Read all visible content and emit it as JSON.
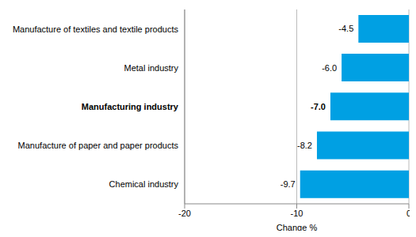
{
  "chart_data": {
    "type": "bar",
    "orientation": "horizontal",
    "categories": [
      "Manufacture of textiles and textile products",
      "Metal industry",
      "Manufacturing industry",
      "Manufacture of paper and paper products",
      "Chemical industry"
    ],
    "values": [
      -4.5,
      -6.0,
      -7.0,
      -8.2,
      -9.7
    ],
    "value_labels": [
      "-4.5",
      "-6.0",
      "-7.0",
      "-8.2",
      "-9.7"
    ],
    "data_labels": true,
    "color": "#00a0e3",
    "xlabel": "Change %",
    "xlim": [
      -20,
      0
    ],
    "xticks": [
      -20,
      -10,
      0
    ],
    "grid": true
  }
}
